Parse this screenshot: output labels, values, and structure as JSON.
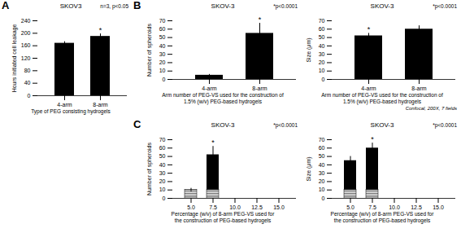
{
  "chart_data": [
    {
      "type": "bar",
      "panel_label": "A",
      "title": "SKOV3",
      "xlabel": "Type of PEG consisting hydrogels",
      "ylabel": "Hours initiated cell leakage",
      "categories": [
        "4-arm",
        "8-arm"
      ],
      "values": [
        168,
        190
      ],
      "errors": [
        5,
        8
      ],
      "ylim": [
        0,
        240
      ],
      "yticks": [
        0,
        40,
        80,
        120,
        160,
        200,
        240
      ],
      "annotation": "n=3, p<0.05",
      "stars": [
        null,
        "*"
      ],
      "color": "#000000",
      "grid": false
    },
    {
      "type": "bar",
      "panel_label": "B",
      "title": "SKOV-3",
      "xlabel": "Arm number of PEG-VS used for the construction of\n1.5% (w/v) PEG-based hydrogels",
      "ylabel": "Number of spheroids",
      "categories": [
        "4-arm",
        "8-arm"
      ],
      "values": [
        5,
        55
      ],
      "errors": [
        1,
        12
      ],
      "ylim": [
        0,
        70
      ],
      "yticks": [
        0,
        10,
        20,
        30,
        40,
        50,
        60,
        70
      ],
      "annotation": "*p<0.0001",
      "stars": [
        null,
        "*"
      ],
      "color": "#000000",
      "grid": false
    },
    {
      "type": "bar",
      "title": "SKOV-3",
      "xlabel": "Arm number of PEG-VS used for the construction of\n1.5% (w/v) PEG-based hydrogels",
      "ylabel": "Size (μm)",
      "categories": [
        "4-arm",
        "8-arm"
      ],
      "values": [
        52,
        60
      ],
      "errors": [
        3,
        4
      ],
      "ylim": [
        0,
        70
      ],
      "yticks": [
        0,
        10,
        20,
        30,
        40,
        50,
        60,
        70
      ],
      "annotation": "*p<0.0001",
      "stars": [
        "*",
        null
      ],
      "caption": "Confocal, 200X, 7 fields",
      "color": "#000000",
      "grid": false
    },
    {
      "type": "bar",
      "panel_label": "C",
      "title": "SKOV-3",
      "xlabel": "Percentage (w/v) of 8-arm PEG-VS used for\nthe construction of PEG-based hydrogels",
      "ylabel": "Number of spheroids",
      "categories": [
        "5.0",
        "7.5",
        "10.0",
        "12.5",
        "15.0"
      ],
      "values": [
        10,
        52,
        0,
        0,
        0
      ],
      "errors": [
        2,
        10,
        0,
        0,
        0
      ],
      "hatch_heights": [
        10,
        10,
        0,
        0,
        0
      ],
      "ylim": [
        0,
        70
      ],
      "yticks": [
        0,
        10,
        20,
        30,
        40,
        50,
        60,
        70
      ],
      "annotation": "*p<0.0001",
      "stars": [
        null,
        "*",
        null,
        null,
        null
      ],
      "color": "#000000",
      "grid": false
    },
    {
      "type": "bar",
      "title": "SKOV-3",
      "xlabel": "Percentage (w/v) of 8-arm PEG-VS used for\nthe construction of PEG-based hydrogels",
      "ylabel": "Size (μm)",
      "categories": [
        "5.0",
        "7.5",
        "10.0",
        "12.5",
        "15.0"
      ],
      "values": [
        45,
        60,
        0,
        0,
        0
      ],
      "errors": [
        5,
        6,
        0,
        0,
        0
      ],
      "hatch_heights": [
        10,
        10,
        0,
        0,
        0
      ],
      "ylim": [
        0,
        70
      ],
      "yticks": [
        0,
        10,
        20,
        30,
        40,
        50,
        60,
        70
      ],
      "annotation": "*p<0.0001",
      "stars": [
        null,
        "*",
        null,
        null,
        null
      ],
      "color": "#000000",
      "grid": false
    }
  ]
}
